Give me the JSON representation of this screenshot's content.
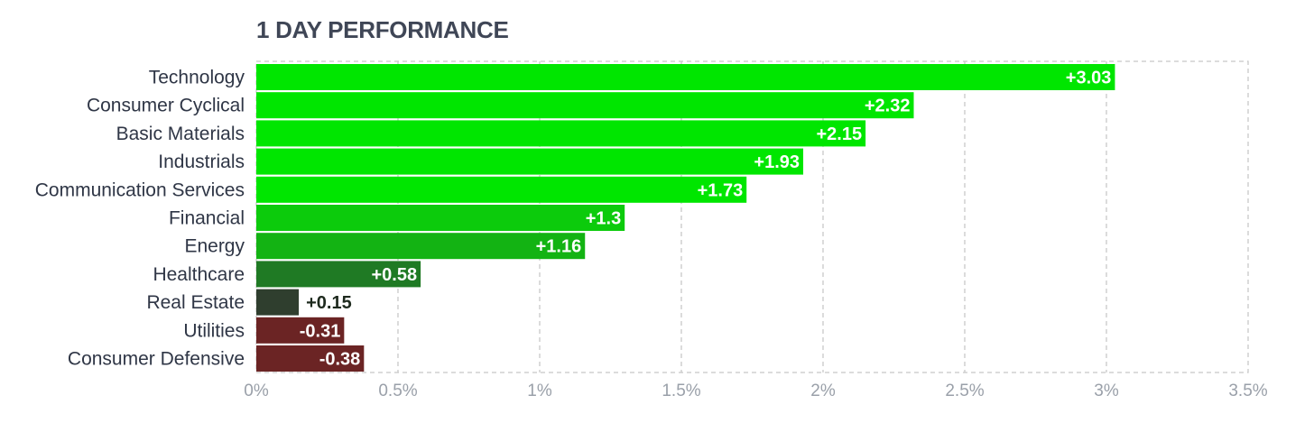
{
  "chart_data": {
    "type": "bar",
    "orientation": "horizontal",
    "title": "1 DAY PERFORMANCE",
    "categories": [
      "Technology",
      "Consumer Cyclical",
      "Basic Materials",
      "Industrials",
      "Communication Services",
      "Financial",
      "Energy",
      "Healthcare",
      "Real Estate",
      "Utilities",
      "Consumer Defensive"
    ],
    "values": [
      3.03,
      2.32,
      2.15,
      1.93,
      1.73,
      1.3,
      1.16,
      0.58,
      0.15,
      -0.31,
      -0.38
    ],
    "value_labels": [
      "+3.03",
      "+2.32",
      "+2.15",
      "+1.93",
      "+1.73",
      "+1.3",
      "+1.16",
      "+0.58",
      "+0.15",
      "-0.31",
      "-0.38"
    ],
    "bar_colors": [
      "#00e600",
      "#00e600",
      "#00e600",
      "#00e600",
      "#00e600",
      "#0ccb0c",
      "#13b313",
      "#1f7a24",
      "#2f3e2e",
      "#6b2424",
      "#6b2424"
    ],
    "xlim": [
      0,
      3.5
    ],
    "x_ticks": [
      0,
      0.5,
      1,
      1.5,
      2,
      2.5,
      3,
      3.5
    ],
    "x_tick_labels": [
      "0%",
      "0.5%",
      "1%",
      "1.5%",
      "2%",
      "2.5%",
      "3%",
      "3.5%"
    ],
    "negative_bars_drawn_as": "magnitude",
    "grid": true,
    "legend": false
  }
}
